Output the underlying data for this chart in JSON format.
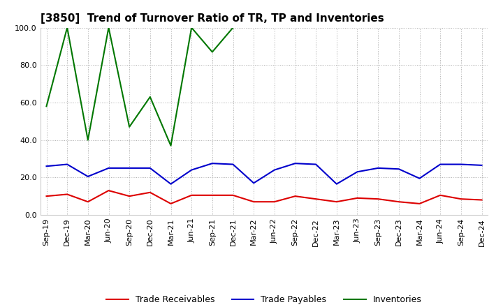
{
  "title": "[3850]  Trend of Turnover Ratio of TR, TP and Inventories",
  "xlabels": [
    "Sep-19",
    "Dec-19",
    "Mar-20",
    "Jun-20",
    "Sep-20",
    "Dec-20",
    "Mar-21",
    "Jun-21",
    "Sep-21",
    "Dec-21",
    "Mar-22",
    "Jun-22",
    "Sep-22",
    "Dec-22",
    "Mar-23",
    "Jun-23",
    "Sep-23",
    "Dec-23",
    "Mar-24",
    "Jun-24",
    "Sep-24",
    "Dec-24"
  ],
  "trade_receivables": [
    10.0,
    11.0,
    7.0,
    13.0,
    10.0,
    12.0,
    6.0,
    10.5,
    10.5,
    10.5,
    7.0,
    7.0,
    10.0,
    8.5,
    7.0,
    9.0,
    8.5,
    7.0,
    6.0,
    10.5,
    8.5,
    8.0
  ],
  "trade_payables": [
    26.0,
    27.0,
    20.5,
    25.0,
    25.0,
    25.0,
    16.5,
    24.0,
    27.5,
    27.0,
    17.0,
    24.0,
    27.5,
    27.0,
    16.5,
    23.0,
    25.0,
    24.5,
    19.5,
    27.0,
    27.0,
    26.5
  ],
  "inventories": [
    58.0,
    100.0,
    40.0,
    100.0,
    47.0,
    63.0,
    37.0,
    100.0,
    87.0,
    100.0,
    null,
    null,
    null,
    null,
    null,
    null,
    null,
    null,
    null,
    null,
    null,
    null
  ],
  "ylim": [
    0.0,
    100.0
  ],
  "yticks": [
    0.0,
    20.0,
    40.0,
    60.0,
    80.0,
    100.0
  ],
  "color_tr": "#dd0000",
  "color_tp": "#0000cc",
  "color_inv": "#007700",
  "legend_labels": [
    "Trade Receivables",
    "Trade Payables",
    "Inventories"
  ],
  "background_color": "#ffffff",
  "grid_color": "#999999",
  "title_fontsize": 11,
  "tick_fontsize": 8,
  "legend_fontsize": 9,
  "linewidth": 1.5
}
